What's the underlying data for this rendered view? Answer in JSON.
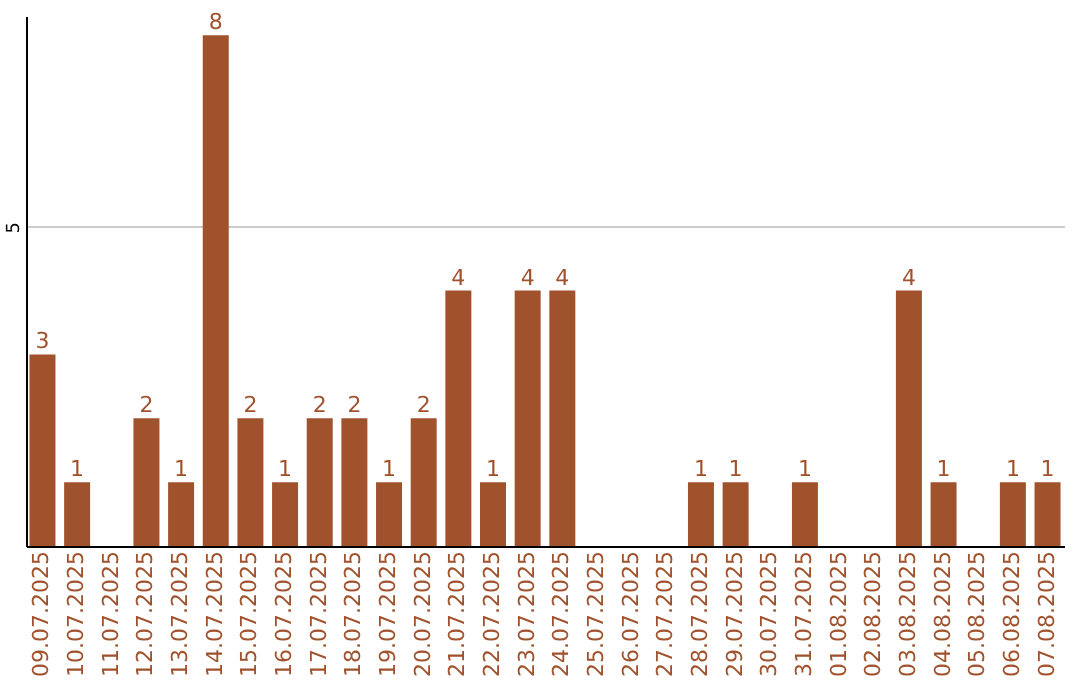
{
  "chart_data": {
    "type": "bar",
    "categories": [
      "09.07.2025",
      "10.07.2025",
      "11.07.2025",
      "12.07.2025",
      "13.07.2025",
      "14.07.2025",
      "15.07.2025",
      "16.07.2025",
      "17.07.2025",
      "18.07.2025",
      "19.07.2025",
      "20.07.2025",
      "21.07.2025",
      "22.07.2025",
      "23.07.2025",
      "24.07.2025",
      "25.07.2025",
      "26.07.2025",
      "27.07.2025",
      "28.07.2025",
      "29.07.2025",
      "30.07.2025",
      "31.07.2025",
      "01.08.2025",
      "02.08.2025",
      "03.08.2025",
      "04.08.2025",
      "05.08.2025",
      "06.08.2025",
      "07.08.2025"
    ],
    "values": [
      3,
      1,
      null,
      2,
      1,
      8,
      2,
      1,
      2,
      2,
      1,
      2,
      4,
      1,
      4,
      4,
      null,
      null,
      null,
      1,
      1,
      null,
      1,
      null,
      null,
      4,
      1,
      null,
      1,
      1
    ],
    "color": "#a0522d",
    "ylim": [
      0,
      8.3
    ],
    "yticks": [
      5
    ],
    "grid": "y",
    "data_labels": true
  }
}
